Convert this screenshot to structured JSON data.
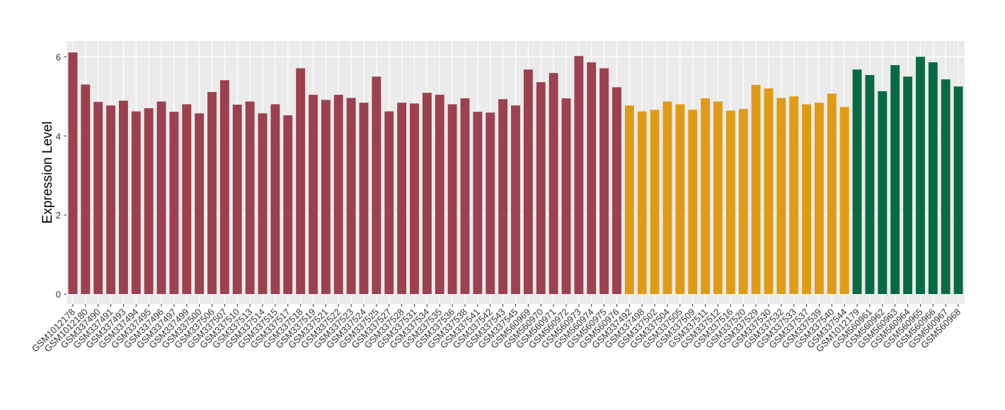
{
  "chart_data": {
    "type": "bar",
    "y_label": "Expression Level",
    "categories": [
      "GSM1012178",
      "GSM1012180",
      "GSM337490",
      "GSM337491",
      "GSM337493",
      "GSM337494",
      "GSM337495",
      "GSM337496",
      "GSM337497",
      "GSM337499",
      "GSM337500",
      "GSM337506",
      "GSM337507",
      "GSM337510",
      "GSM337513",
      "GSM337514",
      "GSM337515",
      "GSM337517",
      "GSM337518",
      "GSM337519",
      "GSM337521",
      "GSM337522",
      "GSM337523",
      "GSM337524",
      "GSM337525",
      "GSM337527",
      "GSM337528",
      "GSM337531",
      "GSM337534",
      "GSM337535",
      "GSM337536",
      "GSM337538",
      "GSM337541",
      "GSM337542",
      "GSM337543",
      "GSM337545",
      "GSM560969",
      "GSM560970",
      "GSM560971",
      "GSM560972",
      "GSM560973",
      "GSM560974",
      "GSM560975",
      "GSM560976",
      "GSM337492",
      "GSM337498",
      "GSM337502",
      "GSM337504",
      "GSM337505",
      "GSM337509",
      "GSM337511",
      "GSM337512",
      "GSM337516",
      "GSM337520",
      "GSM337529",
      "GSM337530",
      "GSM337532",
      "GSM337533",
      "GSM337537",
      "GSM337539",
      "GSM337540",
      "GSM337544",
      "GSM1012179",
      "GSM560961",
      "GSM560962",
      "GSM560963",
      "GSM560964",
      "GSM560965",
      "GSM560966",
      "GSM560967",
      "GSM560968"
    ],
    "values": [
      6.11,
      5.3,
      4.86,
      4.77,
      4.89,
      4.62,
      4.7,
      4.87,
      4.61,
      4.8,
      4.57,
      5.11,
      5.41,
      4.79,
      4.87,
      4.57,
      4.8,
      4.52,
      5.71,
      5.04,
      4.91,
      5.04,
      4.96,
      4.84,
      5.5,
      4.62,
      4.84,
      4.82,
      5.09,
      5.04,
      4.8,
      4.95,
      4.61,
      4.59,
      4.93,
      4.77,
      5.68,
      5.36,
      5.59,
      4.95,
      6.02,
      5.86,
      5.71,
      5.23,
      4.77,
      4.62,
      4.66,
      4.87,
      4.8,
      4.66,
      4.95,
      4.87,
      4.64,
      4.68,
      5.29,
      5.2,
      4.96,
      5.0,
      4.8,
      4.84,
      5.07,
      4.73,
      5.68,
      5.54,
      5.13,
      5.79,
      5.5,
      6.0,
      5.86,
      5.43,
      5.25
    ],
    "colors": [
      "#9b4150",
      "#9b4150",
      "#9b4150",
      "#9b4150",
      "#9b4150",
      "#9b4150",
      "#9b4150",
      "#9b4150",
      "#9b4150",
      "#9b4150",
      "#9b4150",
      "#9b4150",
      "#9b4150",
      "#9b4150",
      "#9b4150",
      "#9b4150",
      "#9b4150",
      "#9b4150",
      "#9b4150",
      "#9b4150",
      "#9b4150",
      "#9b4150",
      "#9b4150",
      "#9b4150",
      "#9b4150",
      "#9b4150",
      "#9b4150",
      "#9b4150",
      "#9b4150",
      "#9b4150",
      "#9b4150",
      "#9b4150",
      "#9b4150",
      "#9b4150",
      "#9b4150",
      "#9b4150",
      "#9b4150",
      "#9b4150",
      "#9b4150",
      "#9b4150",
      "#9b4150",
      "#9b4150",
      "#9b4150",
      "#9b4150",
      "#e09b16",
      "#e09b16",
      "#e09b16",
      "#e09b16",
      "#e09b16",
      "#e09b16",
      "#e09b16",
      "#e09b16",
      "#e09b16",
      "#e09b16",
      "#e09b16",
      "#e09b16",
      "#e09b16",
      "#e09b16",
      "#e09b16",
      "#e09b16",
      "#e09b16",
      "#e09b16",
      "#086a43",
      "#086a43",
      "#086a43",
      "#086a43",
      "#086a43",
      "#086a43",
      "#086a43",
      "#086a43",
      "#086a43"
    ],
    "ylim": [
      -0.25,
      6.4
    ],
    "yticks": [
      0,
      2,
      4,
      6
    ],
    "grid": true
  }
}
